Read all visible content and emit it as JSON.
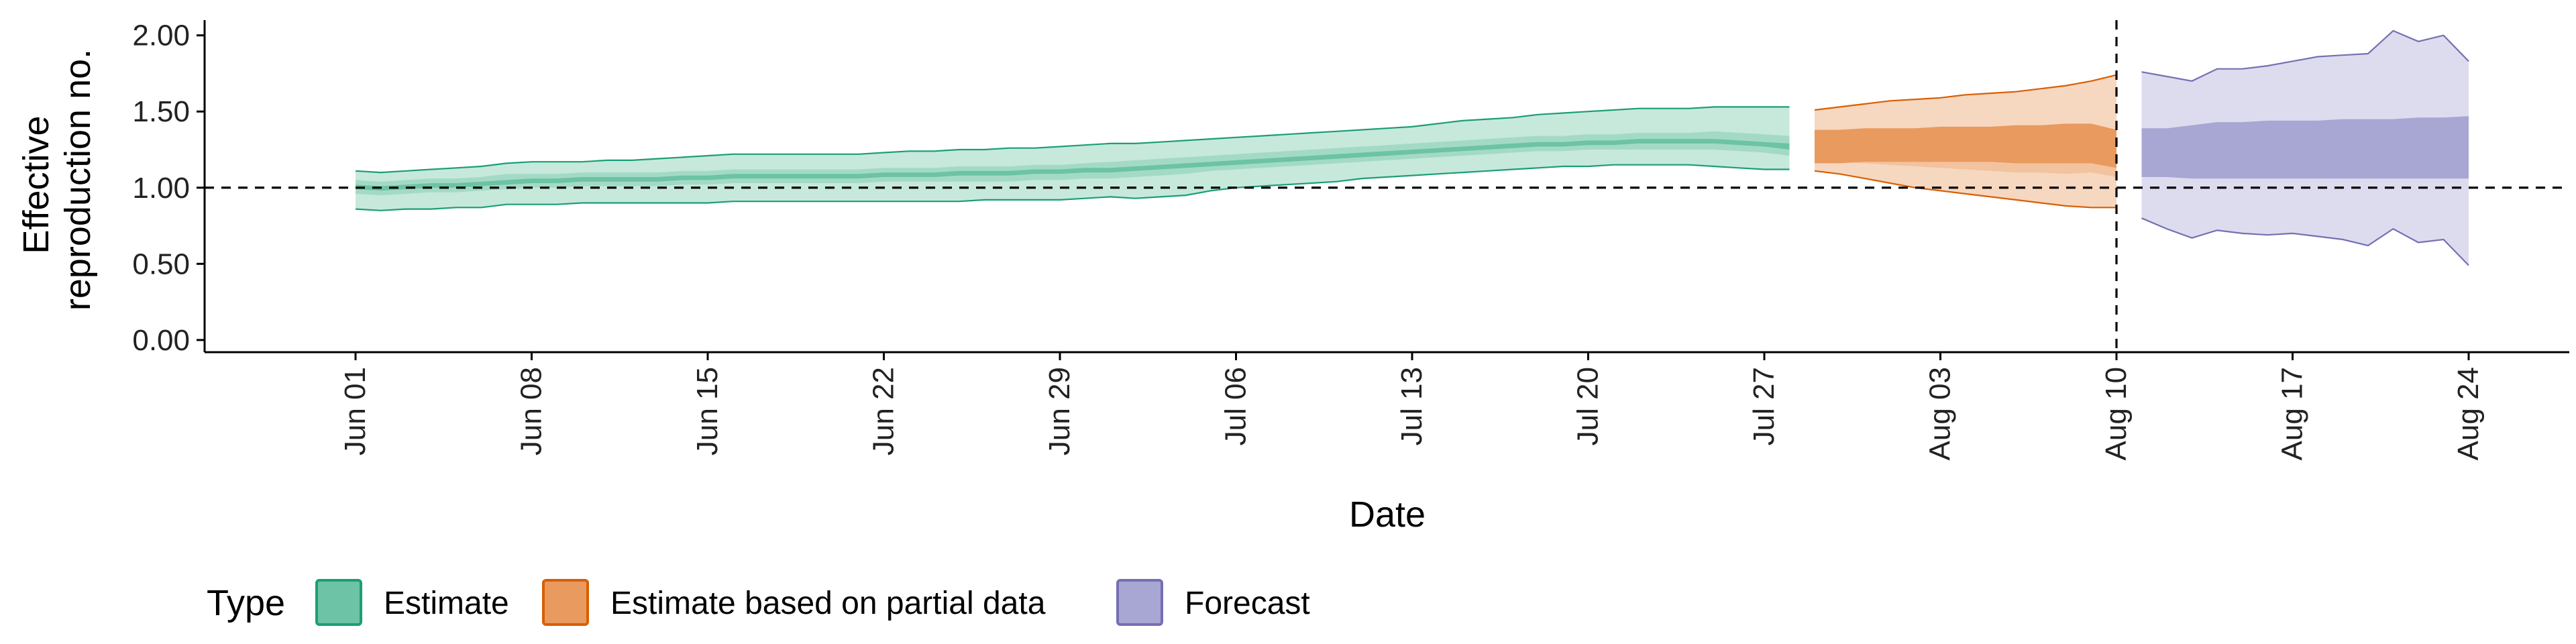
{
  "chart_data": {
    "type": "area",
    "xlabel": "Date",
    "ylabel_lines": [
      "Effective",
      "reproduction no."
    ],
    "x_start": "2020-06-01",
    "x_end": "2020-08-24",
    "xlim": [
      "2020-05-26",
      "2020-08-28"
    ],
    "ylim": [
      -0.08,
      2.1
    ],
    "x_ticks": [
      {
        "date": "2020-06-01",
        "label": "Jun 01"
      },
      {
        "date": "2020-06-08",
        "label": "Jun 08"
      },
      {
        "date": "2020-06-15",
        "label": "Jun 15"
      },
      {
        "date": "2020-06-22",
        "label": "Jun 22"
      },
      {
        "date": "2020-06-29",
        "label": "Jun 29"
      },
      {
        "date": "2020-07-06",
        "label": "Jul 06"
      },
      {
        "date": "2020-07-13",
        "label": "Jul 13"
      },
      {
        "date": "2020-07-20",
        "label": "Jul 20"
      },
      {
        "date": "2020-07-27",
        "label": "Jul 27"
      },
      {
        "date": "2020-08-03",
        "label": "Aug 03"
      },
      {
        "date": "2020-08-10",
        "label": "Aug 10"
      },
      {
        "date": "2020-08-17",
        "label": "Aug 17"
      },
      {
        "date": "2020-08-24",
        "label": "Aug 24"
      }
    ],
    "y_ticks": [
      {
        "value": 0.0,
        "label": "0.00"
      },
      {
        "value": 0.5,
        "label": "0.50"
      },
      {
        "value": 1.0,
        "label": "1.00"
      },
      {
        "value": 1.5,
        "label": "1.50"
      },
      {
        "value": 2.0,
        "label": "2.00"
      }
    ],
    "reference_hline": 1.0,
    "reference_vline": "2020-08-10",
    "legend": {
      "title": "Type",
      "position": "bottom",
      "entries": [
        {
          "label": "Estimate",
          "fill": "#6cc3a6",
          "stroke": "#1b9e77"
        },
        {
          "label": "Estimate based on partial data",
          "fill": "#e99a5e",
          "stroke": "#d95f02"
        },
        {
          "label": "Forecast",
          "fill": "#a8a6d3",
          "stroke": "#7570b3"
        }
      ]
    },
    "series": [
      {
        "type_label": "Estimate",
        "outer_fill": "#c6e9dc",
        "inner_fill": "#a3dac6",
        "median_fill": "#6cc3a6",
        "stroke": "#1b9e77",
        "x": [
          "2020-06-01",
          "2020-06-02",
          "2020-06-03",
          "2020-06-04",
          "2020-06-05",
          "2020-06-06",
          "2020-06-07",
          "2020-06-08",
          "2020-06-09",
          "2020-06-10",
          "2020-06-11",
          "2020-06-12",
          "2020-06-13",
          "2020-06-14",
          "2020-06-15",
          "2020-06-16",
          "2020-06-17",
          "2020-06-18",
          "2020-06-19",
          "2020-06-20",
          "2020-06-21",
          "2020-06-22",
          "2020-06-23",
          "2020-06-24",
          "2020-06-25",
          "2020-06-26",
          "2020-06-27",
          "2020-06-28",
          "2020-06-29",
          "2020-06-30",
          "2020-07-01",
          "2020-07-02",
          "2020-07-03",
          "2020-07-04",
          "2020-07-05",
          "2020-07-06",
          "2020-07-07",
          "2020-07-08",
          "2020-07-09",
          "2020-07-10",
          "2020-07-11",
          "2020-07-12",
          "2020-07-13",
          "2020-07-14",
          "2020-07-15",
          "2020-07-16",
          "2020-07-17",
          "2020-07-18",
          "2020-07-19",
          "2020-07-20",
          "2020-07-21",
          "2020-07-22",
          "2020-07-23",
          "2020-07-24",
          "2020-07-25",
          "2020-07-26",
          "2020-07-27",
          "2020-07-28"
        ],
        "lower90": [
          0.86,
          0.85,
          0.86,
          0.86,
          0.87,
          0.87,
          0.89,
          0.89,
          0.89,
          0.9,
          0.9,
          0.9,
          0.9,
          0.9,
          0.9,
          0.91,
          0.91,
          0.91,
          0.91,
          0.91,
          0.91,
          0.91,
          0.91,
          0.91,
          0.91,
          0.92,
          0.92,
          0.92,
          0.92,
          0.93,
          0.94,
          0.93,
          0.94,
          0.95,
          0.98,
          1.0,
          1.01,
          1.02,
          1.03,
          1.04,
          1.06,
          1.07,
          1.08,
          1.09,
          1.1,
          1.11,
          1.12,
          1.13,
          1.14,
          1.14,
          1.15,
          1.15,
          1.15,
          1.15,
          1.14,
          1.13,
          1.12,
          1.12
        ],
        "lower50": [
          0.96,
          0.95,
          0.96,
          0.97,
          0.97,
          0.98,
          0.99,
          1.0,
          1.0,
          1.01,
          1.01,
          1.01,
          1.01,
          1.02,
          1.02,
          1.03,
          1.03,
          1.03,
          1.03,
          1.03,
          1.03,
          1.04,
          1.04,
          1.04,
          1.04,
          1.04,
          1.04,
          1.05,
          1.05,
          1.06,
          1.06,
          1.07,
          1.08,
          1.09,
          1.11,
          1.12,
          1.13,
          1.14,
          1.15,
          1.16,
          1.17,
          1.18,
          1.19,
          1.2,
          1.21,
          1.22,
          1.23,
          1.24,
          1.24,
          1.25,
          1.25,
          1.25,
          1.25,
          1.25,
          1.25,
          1.24,
          1.23,
          1.21
        ],
        "median_lower": [
          0.99,
          0.98,
          0.99,
          1.0,
          1.0,
          1.01,
          1.02,
          1.03,
          1.03,
          1.04,
          1.04,
          1.04,
          1.04,
          1.05,
          1.05,
          1.06,
          1.06,
          1.06,
          1.06,
          1.06,
          1.06,
          1.07,
          1.07,
          1.07,
          1.08,
          1.08,
          1.08,
          1.09,
          1.09,
          1.1,
          1.1,
          1.11,
          1.12,
          1.13,
          1.14,
          1.15,
          1.16,
          1.17,
          1.18,
          1.19,
          1.2,
          1.21,
          1.22,
          1.23,
          1.24,
          1.25,
          1.26,
          1.27,
          1.27,
          1.28,
          1.28,
          1.29,
          1.29,
          1.29,
          1.29,
          1.28,
          1.27,
          1.25
        ],
        "median_upper": [
          1.02,
          1.01,
          1.02,
          1.03,
          1.03,
          1.04,
          1.05,
          1.06,
          1.06,
          1.07,
          1.07,
          1.07,
          1.07,
          1.08,
          1.08,
          1.09,
          1.09,
          1.09,
          1.09,
          1.09,
          1.09,
          1.1,
          1.1,
          1.1,
          1.11,
          1.11,
          1.11,
          1.12,
          1.12,
          1.13,
          1.13,
          1.14,
          1.15,
          1.16,
          1.17,
          1.18,
          1.19,
          1.2,
          1.21,
          1.22,
          1.23,
          1.24,
          1.25,
          1.26,
          1.27,
          1.28,
          1.29,
          1.3,
          1.3,
          1.31,
          1.31,
          1.32,
          1.32,
          1.32,
          1.32,
          1.31,
          1.3,
          1.29
        ],
        "upper50": [
          1.05,
          1.04,
          1.05,
          1.06,
          1.06,
          1.07,
          1.09,
          1.09,
          1.09,
          1.1,
          1.1,
          1.1,
          1.1,
          1.11,
          1.11,
          1.12,
          1.12,
          1.12,
          1.12,
          1.12,
          1.12,
          1.13,
          1.13,
          1.13,
          1.14,
          1.14,
          1.14,
          1.15,
          1.15,
          1.16,
          1.17,
          1.18,
          1.19,
          1.2,
          1.21,
          1.22,
          1.23,
          1.24,
          1.25,
          1.26,
          1.27,
          1.28,
          1.29,
          1.3,
          1.31,
          1.32,
          1.33,
          1.34,
          1.34,
          1.35,
          1.35,
          1.36,
          1.36,
          1.36,
          1.37,
          1.36,
          1.35,
          1.34
        ],
        "upper90": [
          1.11,
          1.1,
          1.11,
          1.12,
          1.13,
          1.14,
          1.16,
          1.17,
          1.17,
          1.17,
          1.18,
          1.18,
          1.19,
          1.2,
          1.21,
          1.22,
          1.22,
          1.22,
          1.22,
          1.22,
          1.22,
          1.23,
          1.24,
          1.24,
          1.25,
          1.25,
          1.26,
          1.26,
          1.27,
          1.28,
          1.29,
          1.29,
          1.3,
          1.31,
          1.32,
          1.33,
          1.34,
          1.35,
          1.36,
          1.37,
          1.38,
          1.39,
          1.4,
          1.42,
          1.44,
          1.45,
          1.46,
          1.48,
          1.49,
          1.5,
          1.51,
          1.52,
          1.52,
          1.52,
          1.53,
          1.53,
          1.53,
          1.53
        ]
      },
      {
        "type_label": "Estimate based on partial data",
        "outer_fill": "#f6d7c0",
        "inner_fill": "#f2c39e",
        "median_fill": "#e99a5e",
        "stroke": "#d95f02",
        "x": [
          "2020-07-29",
          "2020-07-30",
          "2020-07-31",
          "2020-08-01",
          "2020-08-02",
          "2020-08-03",
          "2020-08-04",
          "2020-08-05",
          "2020-08-06",
          "2020-08-07",
          "2020-08-08",
          "2020-08-09",
          "2020-08-10"
        ],
        "lower90": [
          1.11,
          1.09,
          1.06,
          1.03,
          1.0,
          0.98,
          0.96,
          0.94,
          0.92,
          0.9,
          0.88,
          0.87,
          0.87
        ],
        "lower50": [
          1.18,
          1.17,
          1.16,
          1.15,
          1.14,
          1.13,
          1.12,
          1.11,
          1.1,
          1.1,
          1.09,
          1.1,
          1.07
        ],
        "median_lower": [
          1.16,
          1.16,
          1.17,
          1.17,
          1.17,
          1.17,
          1.17,
          1.17,
          1.16,
          1.16,
          1.16,
          1.16,
          1.13
        ],
        "median_upper": [
          1.38,
          1.38,
          1.39,
          1.39,
          1.39,
          1.4,
          1.4,
          1.4,
          1.41,
          1.41,
          1.42,
          1.42,
          1.38
        ],
        "upper50": [
          1.38,
          1.38,
          1.39,
          1.39,
          1.39,
          1.4,
          1.4,
          1.4,
          1.41,
          1.41,
          1.42,
          1.42,
          1.38
        ],
        "upper90": [
          1.51,
          1.53,
          1.55,
          1.57,
          1.58,
          1.59,
          1.61,
          1.62,
          1.63,
          1.65,
          1.67,
          1.7,
          1.74
        ]
      },
      {
        "type_label": "Forecast",
        "outer_fill": "#dddcef",
        "inner_fill": "#c8c6e3",
        "median_fill": "#a8a6d3",
        "stroke": "#7570b3",
        "x": [
          "2020-08-11",
          "2020-08-12",
          "2020-08-13",
          "2020-08-14",
          "2020-08-15",
          "2020-08-16",
          "2020-08-17",
          "2020-08-18",
          "2020-08-19",
          "2020-08-20",
          "2020-08-21",
          "2020-08-22",
          "2020-08-23",
          "2020-08-24"
        ],
        "lower90": [
          0.8,
          0.73,
          0.67,
          0.72,
          0.7,
          0.69,
          0.7,
          0.68,
          0.66,
          0.62,
          0.73,
          0.64,
          0.66,
          0.49
        ],
        "lower50": [
          1.07,
          1.07,
          1.06,
          1.06,
          1.06,
          1.06,
          1.06,
          1.06,
          1.06,
          1.06,
          1.06,
          1.06,
          1.06,
          1.06
        ],
        "median_lower": [
          1.07,
          1.07,
          1.06,
          1.06,
          1.06,
          1.06,
          1.06,
          1.06,
          1.06,
          1.06,
          1.06,
          1.06,
          1.06,
          1.06
        ],
        "median_upper": [
          1.39,
          1.39,
          1.41,
          1.43,
          1.43,
          1.44,
          1.44,
          1.44,
          1.45,
          1.45,
          1.45,
          1.46,
          1.46,
          1.47
        ],
        "upper50": [
          1.39,
          1.39,
          1.41,
          1.43,
          1.43,
          1.44,
          1.44,
          1.44,
          1.45,
          1.45,
          1.45,
          1.46,
          1.46,
          1.47
        ],
        "upper90": [
          1.76,
          1.73,
          1.7,
          1.78,
          1.78,
          1.8,
          1.83,
          1.86,
          1.87,
          1.88,
          2.03,
          1.96,
          2.0,
          1.83
        ]
      }
    ]
  }
}
